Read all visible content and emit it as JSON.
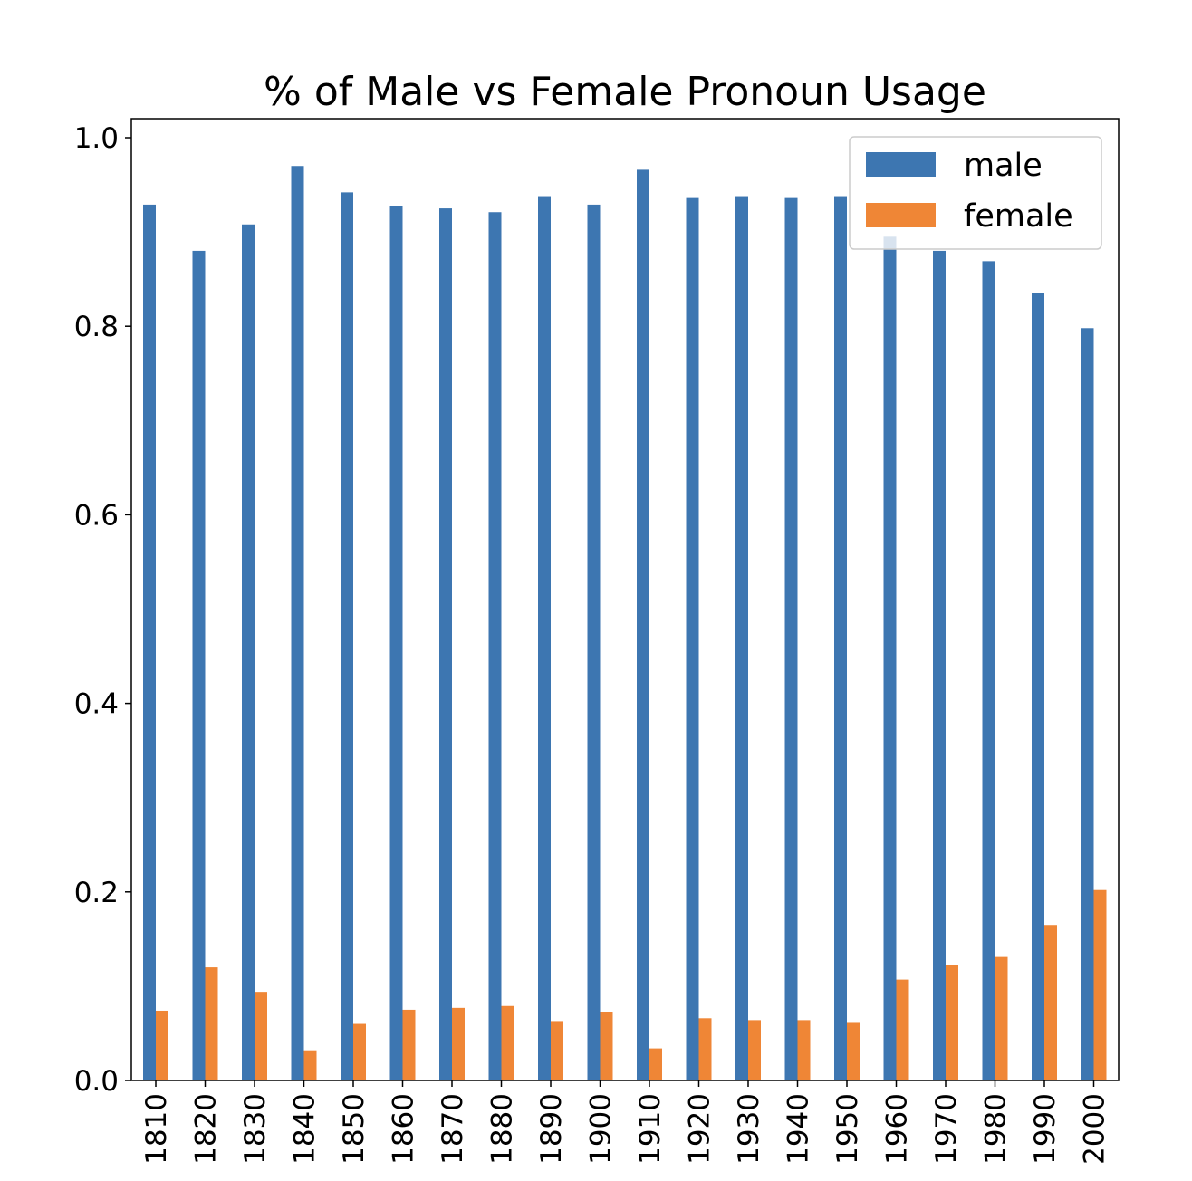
{
  "chart_data": {
    "type": "bar",
    "title": "% of Male vs Female Pronoun Usage",
    "xlabel": "",
    "ylabel": "",
    "ylim": [
      0,
      1.02
    ],
    "yticks": [
      "0.0",
      "0.2",
      "0.4",
      "0.6",
      "0.8",
      "1.0"
    ],
    "categories": [
      "1810",
      "1820",
      "1830",
      "1840",
      "1850",
      "1860",
      "1870",
      "1880",
      "1890",
      "1900",
      "1910",
      "1920",
      "1930",
      "1940",
      "1950",
      "1960",
      "1970",
      "1980",
      "1990",
      "2000"
    ],
    "series": [
      {
        "name": "male",
        "color": "#3d76b1",
        "values": [
          0.929,
          0.88,
          0.908,
          0.97,
          0.942,
          0.927,
          0.925,
          0.921,
          0.938,
          0.929,
          0.966,
          0.936,
          0.938,
          0.936,
          0.938,
          0.895,
          0.88,
          0.869,
          0.835,
          0.798
        ]
      },
      {
        "name": "female",
        "color": "#ef8636",
        "values": [
          0.074,
          0.12,
          0.094,
          0.032,
          0.06,
          0.075,
          0.077,
          0.079,
          0.063,
          0.073,
          0.034,
          0.066,
          0.064,
          0.064,
          0.062,
          0.107,
          0.122,
          0.131,
          0.165,
          0.202
        ]
      }
    ],
    "grid": false,
    "legend": "top-right"
  }
}
